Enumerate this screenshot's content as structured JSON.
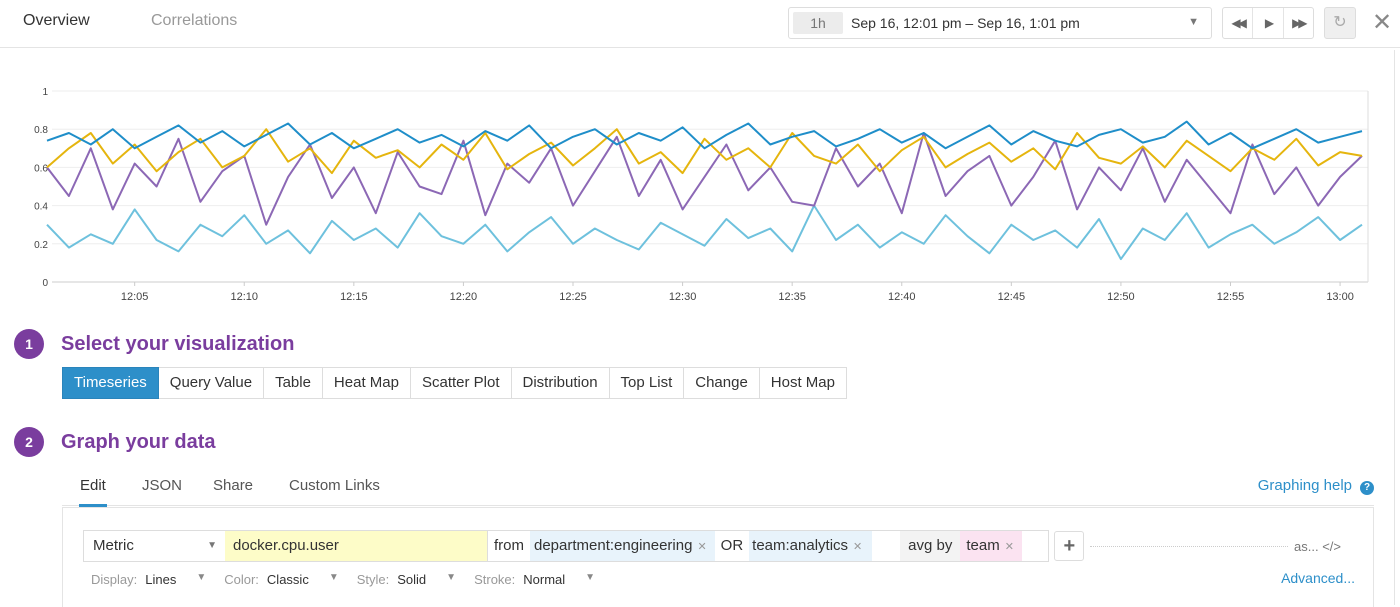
{
  "header": {
    "tabs": [
      "Overview",
      "Correlations"
    ],
    "time_badge": "1h",
    "time_range": "Sep 16, 12:01 pm – Sep 16, 1:01 pm",
    "icons": [
      "rewind-icon",
      "play-icon",
      "fast-forward-icon",
      "reset-icon",
      "close-icon"
    ]
  },
  "chart_data": {
    "type": "line",
    "title": "",
    "xlabel": "",
    "ylabel": "",
    "ylim": [
      0,
      1
    ],
    "grid": true,
    "x_start": "12:01",
    "x_end": "13:01",
    "x_ticks": [
      "12:05",
      "12:10",
      "12:15",
      "12:20",
      "12:25",
      "12:30",
      "12:35",
      "12:40",
      "12:45",
      "12:50",
      "12:55",
      "13:00"
    ],
    "y_ticks": [
      "0",
      "0.2",
      "0.4",
      "0.6",
      "0.8",
      "1"
    ],
    "series": [
      {
        "color": "#1f8ec9",
        "values": [
          0.74,
          0.78,
          0.72,
          0.8,
          0.7,
          0.76,
          0.82,
          0.73,
          0.79,
          0.71,
          0.77,
          0.83,
          0.72,
          0.78,
          0.7,
          0.75,
          0.8,
          0.73,
          0.77,
          0.71,
          0.79,
          0.74,
          0.82,
          0.7,
          0.76,
          0.8,
          0.72,
          0.78,
          0.74,
          0.81,
          0.7,
          0.77,
          0.83,
          0.72,
          0.76,
          0.79,
          0.71,
          0.75,
          0.8,
          0.73,
          0.78,
          0.7,
          0.76,
          0.82,
          0.72,
          0.79,
          0.74,
          0.71,
          0.77,
          0.8,
          0.73,
          0.76,
          0.84,
          0.72,
          0.78,
          0.7,
          0.75,
          0.8,
          0.73,
          0.76,
          0.79
        ]
      },
      {
        "color": "#e5b50e",
        "values": [
          0.6,
          0.7,
          0.78,
          0.62,
          0.72,
          0.58,
          0.68,
          0.75,
          0.6,
          0.66,
          0.8,
          0.63,
          0.7,
          0.57,
          0.74,
          0.65,
          0.69,
          0.6,
          0.72,
          0.64,
          0.78,
          0.59,
          0.67,
          0.73,
          0.61,
          0.7,
          0.8,
          0.62,
          0.68,
          0.57,
          0.75,
          0.64,
          0.7,
          0.6,
          0.78,
          0.66,
          0.62,
          0.72,
          0.58,
          0.69,
          0.76,
          0.6,
          0.67,
          0.73,
          0.63,
          0.7,
          0.59,
          0.78,
          0.65,
          0.62,
          0.71,
          0.6,
          0.74,
          0.66,
          0.58,
          0.7,
          0.64,
          0.75,
          0.61,
          0.68,
          0.66
        ]
      },
      {
        "color": "#8c68b5",
        "values": [
          0.6,
          0.45,
          0.7,
          0.38,
          0.62,
          0.5,
          0.75,
          0.42,
          0.58,
          0.66,
          0.3,
          0.55,
          0.72,
          0.44,
          0.6,
          0.36,
          0.68,
          0.5,
          0.46,
          0.74,
          0.35,
          0.62,
          0.52,
          0.7,
          0.4,
          0.58,
          0.76,
          0.45,
          0.64,
          0.38,
          0.55,
          0.72,
          0.48,
          0.6,
          0.42,
          0.4,
          0.7,
          0.5,
          0.62,
          0.36,
          0.78,
          0.45,
          0.58,
          0.66,
          0.4,
          0.55,
          0.74,
          0.38,
          0.6,
          0.48,
          0.7,
          0.42,
          0.64,
          0.5,
          0.36,
          0.72,
          0.46,
          0.6,
          0.4,
          0.55,
          0.66
        ]
      },
      {
        "color": "#6ec1dd",
        "values": [
          0.3,
          0.18,
          0.25,
          0.2,
          0.38,
          0.22,
          0.16,
          0.3,
          0.24,
          0.35,
          0.2,
          0.27,
          0.15,
          0.32,
          0.22,
          0.28,
          0.18,
          0.36,
          0.24,
          0.2,
          0.3,
          0.16,
          0.26,
          0.34,
          0.2,
          0.28,
          0.22,
          0.17,
          0.31,
          0.25,
          0.19,
          0.33,
          0.23,
          0.28,
          0.16,
          0.4,
          0.22,
          0.3,
          0.18,
          0.26,
          0.2,
          0.35,
          0.24,
          0.15,
          0.3,
          0.22,
          0.27,
          0.18,
          0.33,
          0.12,
          0.28,
          0.22,
          0.36,
          0.18,
          0.25,
          0.3,
          0.2,
          0.26,
          0.34,
          0.22,
          0.3
        ]
      }
    ]
  },
  "steps": [
    {
      "num": "1",
      "title": "Select your visualization"
    },
    {
      "num": "2",
      "title": "Graph your data"
    }
  ],
  "viz_types": [
    "Timeseries",
    "Query Value",
    "Table",
    "Heat Map",
    "Scatter Plot",
    "Distribution",
    "Top List",
    "Change",
    "Host Map"
  ],
  "editor": {
    "tabs": [
      "Edit",
      "JSON",
      "Share",
      "Custom Links"
    ],
    "help": "Graphing help",
    "help_icon": "?"
  },
  "query": {
    "type": "Metric",
    "metric": "docker.cpu.user",
    "from": "from",
    "tag1": "department:engineering",
    "or": "OR",
    "tag2": "team:analytics",
    "agg": "avg by",
    "group": "team",
    "as": "as...",
    "code": "</>",
    "advanced": "Advanced..."
  },
  "display": {
    "display_label": "Display:",
    "display": "Lines",
    "color_label": "Color:",
    "color": "Classic",
    "style_label": "Style:",
    "style": "Solid",
    "stroke_label": "Stroke:",
    "stroke": "Normal"
  }
}
